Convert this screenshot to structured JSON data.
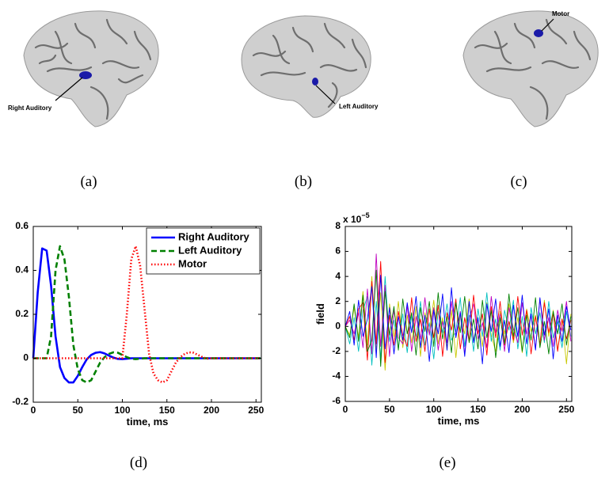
{
  "captions": [
    "(a)",
    "(b)",
    "(c)",
    "(d)",
    "(e)"
  ],
  "brain_annotations": [
    "Right Auditory",
    "Left Auditory",
    "Motor"
  ],
  "chart_data": [
    {
      "type": "line",
      "xlabel": "time, ms",
      "x": [
        0,
        5,
        10,
        15,
        20,
        25,
        30,
        35,
        40,
        45,
        50,
        55,
        60,
        65,
        70,
        75,
        80,
        85,
        90,
        95,
        100,
        105,
        110,
        115,
        120,
        125,
        130,
        135,
        140,
        145,
        150,
        155,
        160,
        165,
        170,
        175,
        180,
        185,
        190,
        195,
        200,
        205,
        210,
        215,
        220,
        225,
        230,
        235,
        240,
        245,
        250,
        255
      ],
      "xlim": [
        0,
        256
      ],
      "xticks": [
        0,
        50,
        100,
        150,
        200,
        250
      ],
      "ylim": [
        -0.2,
        0.6
      ],
      "yticks": [
        -0.2,
        0,
        0.2,
        0.4,
        0.6
      ],
      "legend": "upper right",
      "series": [
        {
          "name": "Right Auditory",
          "color": "#0000ff",
          "style": "solid",
          "values": [
            0,
            0.3,
            0.5,
            0.49,
            0.33,
            0.1,
            -0.04,
            -0.09,
            -0.11,
            -0.11,
            -0.08,
            -0.04,
            -0.005,
            0.015,
            0.025,
            0.028,
            0.022,
            0.012,
            0.003,
            -0.003,
            -0.004,
            -0.002,
            0,
            0,
            0,
            0,
            0,
            0,
            0,
            0,
            0,
            0,
            0,
            0,
            0,
            0,
            0,
            0,
            0,
            0,
            0,
            0,
            0,
            0,
            0,
            0,
            0,
            0,
            0,
            0,
            0,
            0
          ]
        },
        {
          "name": "Left Auditory",
          "color": "#008000",
          "style": "dashed",
          "values": [
            0,
            0,
            0,
            0,
            0.1,
            0.4,
            0.51,
            0.45,
            0.28,
            0.06,
            -0.05,
            -0.1,
            -0.11,
            -0.1,
            -0.06,
            -0.02,
            0.005,
            0.02,
            0.027,
            0.025,
            0.015,
            0.005,
            -0.002,
            -0.004,
            -0.002,
            0,
            0,
            0,
            0,
            0,
            0,
            0,
            0,
            0,
            0,
            0,
            0,
            0,
            0,
            0,
            0,
            0,
            0,
            0,
            0,
            0,
            0,
            0,
            0,
            0,
            0,
            0
          ]
        },
        {
          "name": "Motor",
          "color": "#ff0000",
          "style": "dotted",
          "values": [
            0,
            0,
            0,
            0,
            0,
            0,
            0,
            0,
            0,
            0,
            0,
            0,
            0,
            0,
            0,
            0,
            0,
            0,
            0,
            0,
            0,
            0.2,
            0.45,
            0.51,
            0.42,
            0.22,
            0.02,
            -0.07,
            -0.1,
            -0.11,
            -0.1,
            -0.06,
            -0.02,
            0.005,
            0.02,
            0.027,
            0.025,
            0.015,
            0.005,
            -0.002,
            0,
            0,
            0,
            0,
            0,
            0,
            0,
            0,
            0,
            0,
            0,
            0
          ]
        }
      ]
    },
    {
      "type": "line",
      "xlabel": "time, ms",
      "ylabel": "field",
      "multiplier": "x 10",
      "multiplier_exponent": "−5",
      "x": [
        0,
        5,
        10,
        15,
        20,
        25,
        30,
        35,
        40,
        45,
        50,
        55,
        60,
        65,
        70,
        75,
        80,
        85,
        90,
        95,
        100,
        105,
        110,
        115,
        120,
        125,
        130,
        135,
        140,
        145,
        150,
        155,
        160,
        165,
        170,
        175,
        180,
        185,
        190,
        195,
        200,
        205,
        210,
        215,
        220,
        225,
        230,
        235,
        240,
        245,
        250,
        255
      ],
      "xlim": [
        0,
        256
      ],
      "xticks": [
        0,
        50,
        100,
        150,
        200,
        250
      ],
      "ylim": [
        -6,
        8
      ],
      "yticks": [
        -6,
        -4,
        -2,
        0,
        2,
        4,
        6,
        8
      ],
      "series": [
        {
          "color": "#c8c800",
          "style": "solid",
          "values": [
            0,
            -0.7,
            1.5,
            -0.9,
            2.8,
            -1.5,
            4.0,
            -2.0,
            2.7,
            -3.5,
            1.8,
            -0.8,
            2.0,
            -1.7,
            0.9,
            -1.3,
            1.6,
            -2.4,
            1.1,
            -0.5,
            2.1,
            -1.4,
            0.7,
            -1.9,
            1.3,
            -2.5,
            0.9,
            -0.6,
            2.2,
            -1.1,
            0.5,
            -1.6,
            1.9,
            -0.7,
            -2.0,
            1.2,
            -0.6,
            1.8,
            -1.3,
            0.7,
            -2.1,
            1.4,
            -0.4,
            0.9,
            -1.5,
            2.1,
            -0.8,
            1.3,
            -1.9,
            0.6,
            -3.0,
            1.0
          ]
        },
        {
          "color": "#00bfbf",
          "style": "solid",
          "values": [
            0,
            -1.4,
            0.7,
            -2.0,
            1.3,
            2.4,
            -3.1,
            2.0,
            -2.6,
            4.0,
            -1.2,
            0.5,
            -1.8,
            1.0,
            -2.1,
            0.9,
            -0.8,
            2.0,
            -1.5,
            0.3,
            -2.6,
            1.2,
            -0.5,
            1.8,
            -1.1,
            -0.4,
            2.3,
            -1.6,
            0.9,
            -2.0,
            1.4,
            -0.8,
            2.7,
            -1.2,
            0.6,
            -1.9,
            1.3,
            -0.3,
            2.1,
            -1.8,
            0.8,
            -2.4,
            1.5,
            -0.6,
            1.1,
            -1.3,
            2.0,
            -0.9,
            0.4,
            -1.7,
            1.2,
            -0.8
          ]
        },
        {
          "color": "#bf00bf",
          "style": "solid",
          "values": [
            0,
            0.5,
            -0.6,
            1.1,
            -1.7,
            3.0,
            -2.2,
            5.8,
            -1.6,
            3.3,
            -2.4,
            1.3,
            -0.9,
            -1.4,
            1.7,
            -2.0,
            0.8,
            -1.0,
            2.3,
            -0.7,
            1.5,
            -1.9,
            0.4,
            -1.3,
            2.0,
            -0.8,
            1.2,
            -2.2,
            0.6,
            1.8,
            -1.0,
            0.3,
            -1.7,
            2.4,
            -0.5,
            1.0,
            -2.0,
            1.5,
            -0.2,
            -1.3,
            1.9,
            -0.6,
            0.9,
            -1.8,
            2.2,
            -1.1,
            0.7,
            -1.6,
            1.3,
            -0.4,
            2.0,
            -1.2
          ]
        },
        {
          "color": "#ff0000",
          "style": "solid",
          "values": [
            0,
            0.8,
            -1.1,
            1.4,
            1.9,
            -2.7,
            3.6,
            -1.4,
            5.2,
            -2.9,
            0.9,
            -1.5,
            1.2,
            -0.7,
            -1.6,
            2.3,
            -1.2,
            0.6,
            -2.0,
            1.4,
            -0.9,
            1.7,
            -2.4,
            1.1,
            -0.3,
            2.2,
            -1.8,
            0.7,
            -1.2,
            2.5,
            -0.6,
            1.0,
            -2.3,
            1.6,
            -0.9,
            2.0,
            -1.5,
            0.4,
            -1.1,
            2.4,
            -0.7,
            1.3,
            -2.2,
            0.8,
            -1.4,
            1.9,
            -0.5,
            1.1,
            -2.0,
            0.6,
            -1.0,
            0.5
          ]
        },
        {
          "color": "#008000",
          "style": "solid",
          "values": [
            0,
            -0.9,
            1.8,
            -1.2,
            2.5,
            -2.0,
            -1.1,
            4.5,
            -3.2,
            2.8,
            -0.7,
            1.6,
            -1.9,
            2.2,
            -0.6,
            1.1,
            -2.3,
            1.5,
            -0.4,
            2.0,
            -1.6,
            2.7,
            -1.0,
            0.8,
            -2.1,
            1.9,
            -0.5,
            2.4,
            -1.3,
            0.6,
            -1.8,
            2.1,
            -0.9,
            1.3,
            -2.5,
            0.7,
            -1.4,
            2.6,
            -0.8,
            1.5,
            -2.0,
            0.9,
            -1.1,
            2.3,
            -1.7,
            0.4,
            -2.2,
            1.2,
            -0.6,
            1.8,
            -1.5,
            0.8
          ]
        },
        {
          "color": "#0000ff",
          "style": "solid",
          "values": [
            0,
            1.2,
            -1.5,
            2.1,
            -0.8,
            0.6,
            3.2,
            -2.5,
            4.1,
            -1.8,
            1.5,
            -2.2,
            0.8,
            -1.1,
            1.9,
            -0.5,
            2.4,
            -1.7,
            0.9,
            -2.8,
            1.3,
            -0.6,
            2.6,
            -1.9,
            3.1,
            -0.9,
            1.1,
            -2.4,
            2.0,
            -1.3,
            0.7,
            -3.0,
            1.8,
            -0.4,
            2.2,
            -1.6,
            0.5,
            -2.1,
            1.7,
            -0.8,
            2.5,
            -1.4,
            1.0,
            -1.9,
            2.3,
            -0.7,
            1.4,
            -2.6,
            0.9,
            -1.2,
            1.6,
            -0.3
          ]
        }
      ]
    }
  ]
}
